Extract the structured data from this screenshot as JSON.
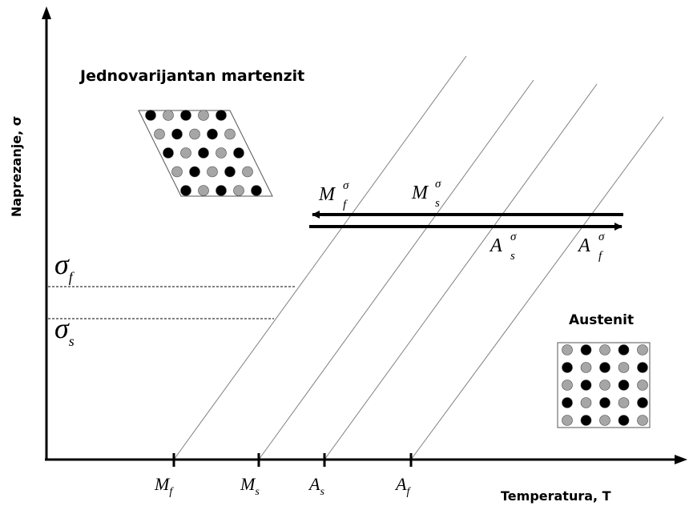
{
  "axes": {
    "y_label": "Naprezanje, σ",
    "x_label": "Temperatura, T"
  },
  "phases": {
    "martensite_label": "Jednovarijantan martenzit",
    "austenite_label": "Austenit"
  },
  "temperatures": [
    {
      "base": "M",
      "sub": "f"
    },
    {
      "base": "M",
      "sub": "s"
    },
    {
      "base": "A",
      "sub": "s"
    },
    {
      "base": "A",
      "sub": "f"
    }
  ],
  "stresses": [
    {
      "base": "σ",
      "sub": "f"
    },
    {
      "base": "σ",
      "sub": "s"
    }
  ],
  "arrow_labels": {
    "mf_sigma": {
      "base": "M",
      "sub": "f",
      "sup": "σ"
    },
    "ms_sigma": {
      "base": "M",
      "sub": "s",
      "sup": "σ"
    },
    "as_sigma": {
      "base": "A",
      "sub": "s",
      "sup": "σ"
    },
    "af_sigma": {
      "base": "A",
      "sub": "f",
      "sup": "σ"
    }
  },
  "colors": {
    "axis": "#000000",
    "line": "#808080",
    "atom_dark": "#000000",
    "atom_light": "#a6a6a6",
    "lattice": "#555555"
  }
}
